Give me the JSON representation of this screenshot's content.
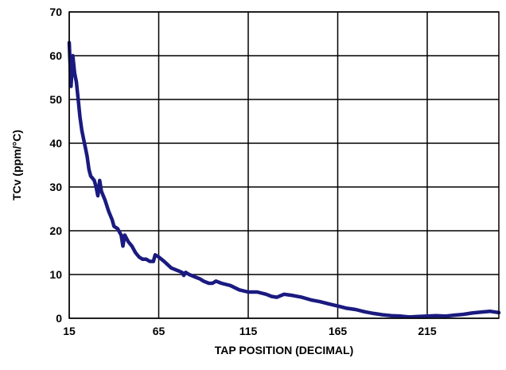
{
  "chart_data": {
    "type": "line",
    "title": "",
    "xlabel": "TAP POSITION (DECIMAL)",
    "ylabel": "TCv (ppm/°C)",
    "xlim": [
      15,
      255
    ],
    "ylim": [
      0,
      70
    ],
    "x_ticks": [
      15,
      65,
      115,
      165,
      215
    ],
    "y_ticks": [
      0,
      10,
      20,
      30,
      40,
      50,
      60,
      70
    ],
    "grid": true,
    "line_color": "#1a1a80",
    "series": [
      {
        "name": "",
        "points": [
          [
            15,
            63
          ],
          [
            16,
            53
          ],
          [
            17,
            60
          ],
          [
            18,
            56
          ],
          [
            19,
            54
          ],
          [
            20,
            50
          ],
          [
            21,
            46
          ],
          [
            22,
            43
          ],
          [
            23,
            41
          ],
          [
            24,
            39
          ],
          [
            25,
            37
          ],
          [
            26,
            34
          ],
          [
            27,
            32.5
          ],
          [
            28,
            32
          ],
          [
            29,
            31.5
          ],
          [
            30,
            30
          ],
          [
            31,
            28
          ],
          [
            32,
            31.5
          ],
          [
            33,
            29
          ],
          [
            35,
            27
          ],
          [
            37,
            24.5
          ],
          [
            39,
            22.5
          ],
          [
            40,
            21
          ],
          [
            42,
            20.5
          ],
          [
            44,
            19
          ],
          [
            45,
            16.5
          ],
          [
            46,
            19
          ],
          [
            48,
            17.5
          ],
          [
            50,
            16.5
          ],
          [
            52,
            15
          ],
          [
            54,
            14
          ],
          [
            56,
            13.5
          ],
          [
            58,
            13.5
          ],
          [
            60,
            13
          ],
          [
            62,
            13
          ],
          [
            63,
            14.5
          ],
          [
            65,
            14
          ],
          [
            68,
            13
          ],
          [
            72,
            11.5
          ],
          [
            75,
            11
          ],
          [
            78,
            10.5
          ],
          [
            79,
            9.8
          ],
          [
            80,
            10.5
          ],
          [
            82,
            10
          ],
          [
            85,
            9.5
          ],
          [
            88,
            9
          ],
          [
            90,
            8.5
          ],
          [
            93,
            8
          ],
          [
            95,
            8
          ],
          [
            97,
            8.5
          ],
          [
            100,
            8
          ],
          [
            105,
            7.5
          ],
          [
            110,
            6.5
          ],
          [
            115,
            6
          ],
          [
            120,
            6
          ],
          [
            125,
            5.5
          ],
          [
            128,
            5
          ],
          [
            131,
            4.8
          ],
          [
            135,
            5.5
          ],
          [
            140,
            5.2
          ],
          [
            145,
            4.8
          ],
          [
            150,
            4.2
          ],
          [
            155,
            3.8
          ],
          [
            160,
            3.3
          ],
          [
            165,
            2.8
          ],
          [
            170,
            2.3
          ],
          [
            175,
            2
          ],
          [
            180,
            1.5
          ],
          [
            185,
            1.1
          ],
          [
            190,
            0.8
          ],
          [
            195,
            0.6
          ],
          [
            200,
            0.5
          ],
          [
            205,
            0.3
          ],
          [
            210,
            0.4
          ],
          [
            215,
            0.5
          ],
          [
            220,
            0.6
          ],
          [
            225,
            0.5
          ],
          [
            230,
            0.7
          ],
          [
            235,
            0.9
          ],
          [
            240,
            1.2
          ],
          [
            245,
            1.4
          ],
          [
            250,
            1.6
          ],
          [
            255,
            1.3
          ]
        ]
      }
    ]
  }
}
